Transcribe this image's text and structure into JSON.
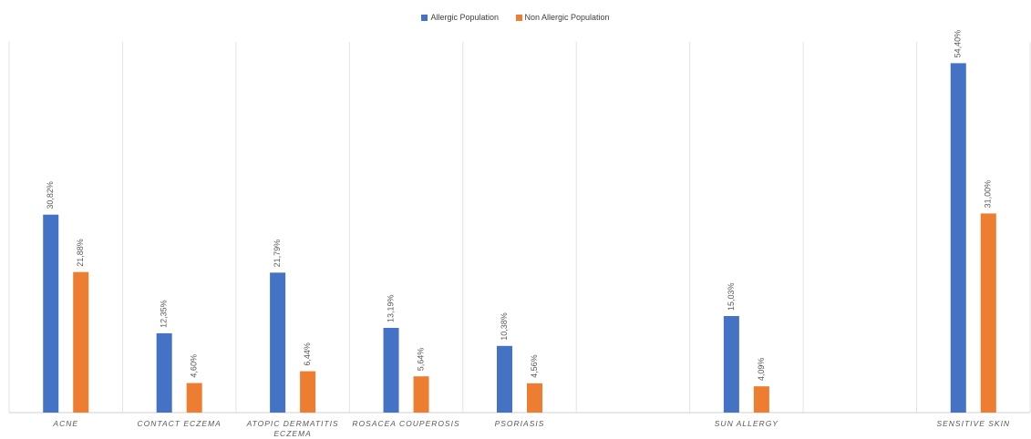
{
  "chart_data": {
    "type": "bar",
    "categories": [
      [
        "ACNE"
      ],
      [
        "CONTACT ECZEMA"
      ],
      [
        "ATOPIC DERMATITIS",
        "ECZEMA"
      ],
      [
        "ROSACEA COUPEROSIS"
      ],
      [
        "PSORIASIS"
      ],
      [
        ""
      ],
      [
        "SUN ALLERGY"
      ],
      [
        ""
      ],
      [
        "SENSITIVE SKIN"
      ]
    ],
    "series": [
      {
        "name": "Allergic Population",
        "color": "#4472C4",
        "values": [
          30.82,
          12.35,
          21.79,
          13.19,
          10.38,
          null,
          15.03,
          null,
          54.4
        ],
        "labels": [
          "30,82%",
          "12,35%",
          "21,79%",
          "13,19%",
          "10,38%",
          "",
          "15,03%",
          "",
          "54,40%"
        ]
      },
      {
        "name": "Non Allergic Population",
        "color": "#ED7D31",
        "values": [
          21.88,
          4.6,
          6.44,
          5.64,
          4.56,
          null,
          4.09,
          null,
          31.0
        ],
        "labels": [
          "21,88%",
          "4,60%",
          "6,44%",
          "5,64%",
          "4,56%",
          "",
          "4,09%",
          "",
          "31,00%"
        ]
      }
    ],
    "ylim": [
      0,
      58
    ],
    "grid": "vertical category separators",
    "legend": "top-center"
  }
}
